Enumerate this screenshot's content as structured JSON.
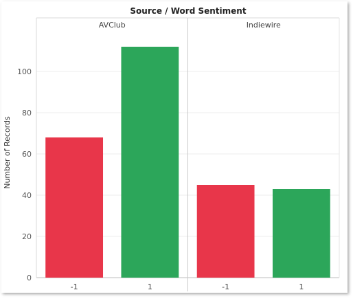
{
  "chart_data": {
    "type": "bar",
    "title": "Source / Word Sentiment",
    "ylabel": "Number of Records",
    "xlabel": "",
    "ylim": [
      0,
      120
    ],
    "yticks": [
      0,
      20,
      40,
      60,
      80,
      100
    ],
    "grid": true,
    "panels": [
      {
        "name": "AVClub",
        "categories": [
          "-1",
          "1"
        ],
        "values": [
          68,
          112
        ],
        "colors": [
          "#e8364a",
          "#2ca65a"
        ]
      },
      {
        "name": "Indiewire",
        "categories": [
          "-1",
          "1"
        ],
        "values": [
          45,
          43
        ],
        "colors": [
          "#e8364a",
          "#2ca65a"
        ]
      }
    ]
  }
}
